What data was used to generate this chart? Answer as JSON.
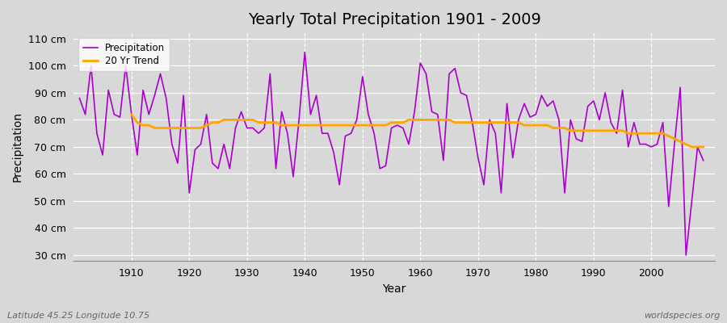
{
  "title": "Yearly Total Precipitation 1901 - 2009",
  "xlabel": "Year",
  "ylabel": "Precipitation",
  "subtitle_left": "Latitude 45.25 Longitude 10.75",
  "subtitle_right": "worldspecies.org",
  "legend_entries": [
    "Precipitation",
    "20 Yr Trend"
  ],
  "precip_color": "#aa00cc",
  "trend_color": "#FFA500",
  "bg_color": "#d8d8d8",
  "plot_bg_color": "#d8d8d8",
  "ylim": [
    28,
    112
  ],
  "yticks": [
    30,
    40,
    50,
    60,
    70,
    80,
    90,
    100,
    110
  ],
  "ytick_labels": [
    "30 cm",
    "40 cm",
    "50 cm",
    "60 cm",
    "70 cm",
    "80 cm",
    "90 cm",
    "100 cm",
    "110 cm"
  ],
  "years": [
    1901,
    1902,
    1903,
    1904,
    1905,
    1906,
    1907,
    1908,
    1909,
    1910,
    1911,
    1912,
    1913,
    1914,
    1915,
    1916,
    1917,
    1918,
    1919,
    1920,
    1921,
    1922,
    1923,
    1924,
    1925,
    1926,
    1927,
    1928,
    1929,
    1930,
    1931,
    1932,
    1933,
    1934,
    1935,
    1936,
    1937,
    1938,
    1939,
    1940,
    1941,
    1942,
    1943,
    1944,
    1945,
    1946,
    1947,
    1948,
    1949,
    1950,
    1951,
    1952,
    1953,
    1954,
    1955,
    1956,
    1957,
    1958,
    1959,
    1960,
    1961,
    1962,
    1963,
    1964,
    1965,
    1966,
    1967,
    1968,
    1969,
    1970,
    1971,
    1972,
    1973,
    1974,
    1975,
    1976,
    1977,
    1978,
    1979,
    1980,
    1981,
    1982,
    1983,
    1984,
    1985,
    1986,
    1987,
    1988,
    1989,
    1990,
    1991,
    1992,
    1993,
    1994,
    1995,
    1996,
    1997,
    1998,
    1999,
    2000,
    2001,
    2002,
    2003,
    2004,
    2005,
    2006,
    2007,
    2008,
    2009
  ],
  "precip": [
    88,
    82,
    100,
    75,
    67,
    91,
    82,
    81,
    100,
    82,
    67,
    91,
    82,
    89,
    97,
    88,
    71,
    64,
    89,
    53,
    69,
    71,
    82,
    64,
    62,
    71,
    62,
    77,
    83,
    77,
    77,
    75,
    77,
    97,
    62,
    83,
    75,
    59,
    80,
    105,
    82,
    89,
    75,
    75,
    68,
    56,
    74,
    75,
    80,
    96,
    82,
    75,
    62,
    63,
    77,
    78,
    77,
    71,
    83,
    101,
    97,
    83,
    82,
    65,
    97,
    99,
    90,
    89,
    79,
    66,
    56,
    80,
    75,
    53,
    86,
    66,
    80,
    86,
    81,
    82,
    89,
    85,
    87,
    80,
    53,
    80,
    73,
    72,
    85,
    87,
    80,
    90,
    79,
    75,
    91,
    70,
    79,
    71,
    71,
    70,
    71,
    79,
    48,
    71,
    92,
    30,
    50,
    70,
    65
  ],
  "trend_start_year": 1910,
  "trend": [
    82,
    79,
    78,
    78,
    77,
    77,
    77,
    77,
    77,
    77,
    77,
    77,
    77,
    78,
    79,
    79,
    80,
    80,
    80,
    80,
    80,
    80,
    79,
    79,
    79,
    79,
    78,
    78,
    78,
    78,
    78,
    78,
    78,
    78,
    78,
    78,
    78,
    78,
    78,
    78,
    78,
    78,
    78,
    78,
    78,
    79,
    79,
    79,
    80,
    80,
    80,
    80,
    80,
    80,
    80,
    80,
    79,
    79,
    79,
    79,
    79,
    79,
    79,
    79,
    79,
    79,
    79,
    79,
    78,
    78,
    78,
    78,
    78,
    77,
    77,
    77,
    76,
    76,
    76,
    76,
    76,
    76,
    76,
    76,
    76,
    76,
    75,
    75,
    75,
    75,
    75,
    75,
    75,
    74,
    73,
    72,
    71,
    70,
    70,
    70
  ],
  "xticks": [
    1910,
    1920,
    1930,
    1940,
    1950,
    1960,
    1970,
    1980,
    1990,
    2000
  ],
  "title_fontsize": 14,
  "label_fontsize": 9,
  "axis_label_fontsize": 10,
  "subtitle_fontsize": 8
}
